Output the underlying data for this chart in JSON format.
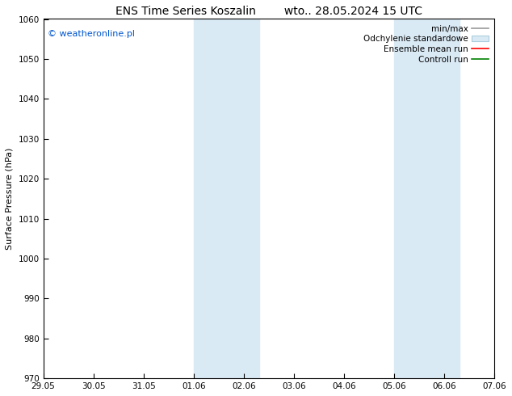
{
  "title_left": "ENS Time Series Koszalin",
  "title_right": "wto.. 28.05.2024 15 UTC",
  "ylabel": "Surface Pressure (hPa)",
  "ylim": [
    970,
    1060
  ],
  "yticks": [
    970,
    980,
    990,
    1000,
    1010,
    1020,
    1030,
    1040,
    1050,
    1060
  ],
  "xtick_labels": [
    "29.05",
    "30.05",
    "31.05",
    "01.06",
    "02.06",
    "03.06",
    "04.06",
    "05.06",
    "06.06",
    "07.06"
  ],
  "xtick_positions": [
    0,
    1,
    2,
    3,
    4,
    5,
    6,
    7,
    8,
    9
  ],
  "xlim": [
    0,
    9
  ],
  "shaded_regions": [
    {
      "start": 3.0,
      "end": 4.3
    },
    {
      "start": 7.0,
      "end": 8.3
    }
  ],
  "shade_color": "#daeaf5",
  "watermark_text": "© weatheronline.pl",
  "watermark_color": "#0055cc",
  "bg_color": "#ffffff",
  "title_fontsize": 10,
  "tick_fontsize": 7.5,
  "ylabel_fontsize": 8,
  "legend_fontsize": 7.5
}
